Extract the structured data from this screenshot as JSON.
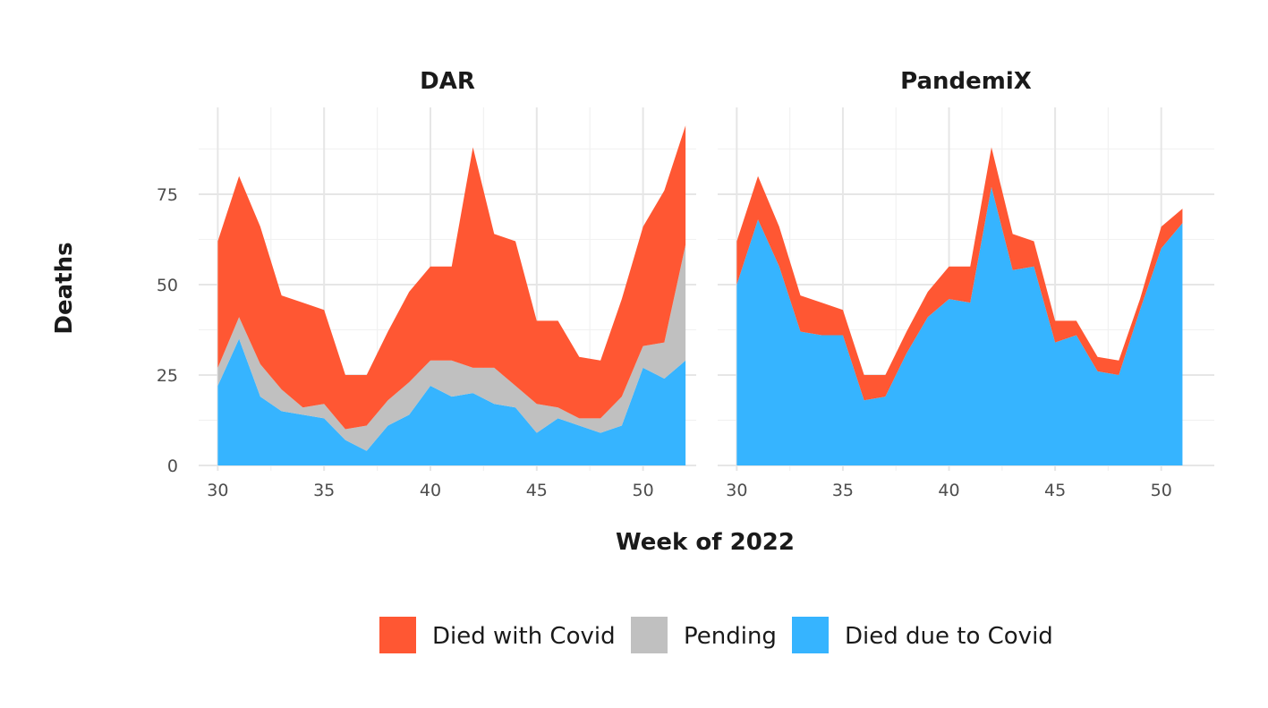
{
  "chart_data": {
    "type": "area",
    "stacked": true,
    "xlabel": "Week of 2022",
    "ylabel": "Deaths",
    "xlim": [
      29.1,
      52.5
    ],
    "ylim": [
      -1.5,
      99
    ],
    "x_ticks": [
      30,
      35,
      40,
      45,
      50
    ],
    "y_ticks": [
      0,
      25,
      50,
      75
    ],
    "grid": true,
    "legend_position": "bottom",
    "legend": [
      {
        "name": "Died with Covid",
        "color": "#FF5733"
      },
      {
        "name": "Pending",
        "color": "#C0C0C0"
      },
      {
        "name": "Died due to Covid",
        "color": "#36B4FF"
      }
    ],
    "panels": [
      {
        "title": "DAR",
        "x": [
          30,
          31,
          32,
          33,
          34,
          35,
          36,
          37,
          38,
          39,
          40,
          41,
          42,
          43,
          44,
          45,
          46,
          47,
          48,
          49,
          50,
          51,
          52
        ],
        "series": [
          {
            "name": "Died due to Covid",
            "values": [
              22,
              35,
              19,
              15,
              14,
              13,
              7,
              4,
              11,
              14,
              22,
              19,
              20,
              17,
              16,
              9,
              13,
              11,
              9,
              11,
              27,
              24,
              29
            ]
          },
          {
            "name": "Pending",
            "values": [
              5,
              6,
              9,
              6,
              2,
              4,
              3,
              7,
              7,
              9,
              7,
              10,
              7,
              10,
              6,
              8,
              3,
              2,
              4,
              8,
              6,
              10,
              32
            ]
          },
          {
            "name": "Died with Covid",
            "values": [
              35,
              39,
              38,
              26,
              29,
              26,
              15,
              14,
              19,
              25,
              26,
              26,
              61,
              37,
              40,
              23,
              24,
              17,
              16,
              27,
              33,
              42,
              33
            ]
          }
        ]
      },
      {
        "title": "PandemiX",
        "x": [
          30,
          31,
          32,
          33,
          34,
          35,
          36,
          37,
          38,
          39,
          40,
          41,
          42,
          43,
          44,
          45,
          46,
          47,
          48,
          49,
          50,
          51
        ],
        "series": [
          {
            "name": "Died due to Covid",
            "values": [
              50,
              68,
              55,
              37,
              36,
              36,
              18,
              19,
              31,
              41,
              46,
              45,
              77,
              54,
              55,
              34,
              36,
              26,
              25,
              43,
              60,
              67
            ]
          },
          {
            "name": "Pending",
            "values": [
              0,
              0,
              0,
              0,
              0,
              0,
              0,
              0,
              0,
              0,
              0,
              0,
              0,
              0,
              0,
              0,
              0,
              0,
              0,
              0,
              0,
              0
            ]
          },
          {
            "name": "Died with Covid",
            "values": [
              12,
              12,
              11,
              10,
              9,
              7,
              7,
              6,
              6,
              7,
              9,
              10,
              11,
              10,
              7,
              6,
              4,
              4,
              4,
              3,
              6,
              4
            ]
          }
        ]
      }
    ]
  }
}
